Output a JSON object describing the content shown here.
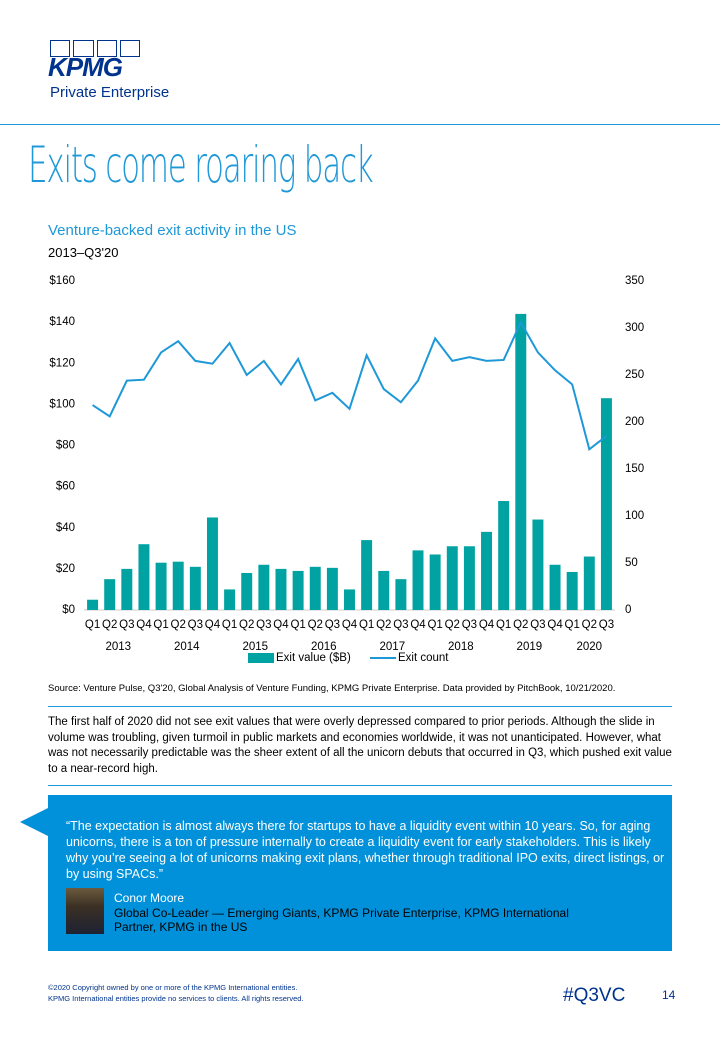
{
  "header": {
    "logo": "KPMG",
    "division": "Private Enterprise",
    "title": "Exits come roaring back"
  },
  "chart_data": {
    "type": "bar",
    "title": "Venture-backed exit activity in the US",
    "subtitle": "2013–Q3'20",
    "categories": [
      "Q1",
      "Q2",
      "Q3",
      "Q4",
      "Q1",
      "Q2",
      "Q3",
      "Q4",
      "Q1",
      "Q2",
      "Q3",
      "Q4",
      "Q1",
      "Q2",
      "Q3",
      "Q4",
      "Q1",
      "Q2",
      "Q3",
      "Q4",
      "Q1",
      "Q2",
      "Q3",
      "Q4",
      "Q1",
      "Q2",
      "Q3",
      "Q4",
      "Q1",
      "Q2",
      "Q3"
    ],
    "year_labels": [
      "2013",
      "2014",
      "2015",
      "2016",
      "2017",
      "2018",
      "2019",
      "2020"
    ],
    "series": [
      {
        "name": "Exit value ($B)",
        "color": "#00a3a1",
        "values": [
          5,
          15,
          20,
          32,
          23,
          23.5,
          21,
          45,
          10,
          18,
          22,
          20,
          19,
          21,
          20.5,
          10,
          34,
          19,
          15,
          29,
          27,
          31,
          31,
          38,
          53,
          144,
          44,
          22,
          18.5,
          26,
          103
        ]
      },
      {
        "name": "Exit count",
        "type": "line",
        "axis": "y2",
        "color": "#1e98d7",
        "values": [
          218,
          206,
          244,
          245,
          274,
          286,
          265,
          262,
          284,
          250,
          265,
          240,
          267,
          223,
          231,
          214,
          271,
          235,
          221,
          244,
          289,
          265,
          269,
          265,
          266,
          306,
          274,
          255,
          240,
          171,
          185
        ]
      }
    ],
    "ylim": [
      0,
      160
    ],
    "yticks": [
      {
        "value": 0,
        "label": "$0"
      },
      {
        "value": 20,
        "label": "$20"
      },
      {
        "value": 40,
        "label": "$40"
      },
      {
        "value": 60,
        "label": "$60"
      },
      {
        "value": 80,
        "label": "$80"
      },
      {
        "value": 100,
        "label": "$100"
      },
      {
        "value": 120,
        "label": "$120"
      },
      {
        "value": 140,
        "label": "$140"
      },
      {
        "value": 160,
        "label": "$160"
      }
    ],
    "y2lim": [
      0,
      350
    ],
    "y2ticks": [
      0,
      50,
      100,
      150,
      200,
      250,
      300,
      350
    ],
    "grid": false,
    "legend": "bottom"
  },
  "source": "Source: Venture Pulse, Q3'20, Global Analysis of Venture Funding, KPMG Private Enterprise. Data provided by PitchBook, 10/21/2020.",
  "body": "The first half of 2020 did not see exit values that were overly depressed compared to prior periods. Although the slide in volume was troubling, given turmoil in public markets and economies worldwide, it was not unanticipated. However, what was not necessarily predictable was the sheer extent of all the unicorn debuts that occurred in Q3, which pushed exit value to a near-record high.",
  "quote": {
    "text": "“The expectation is almost always there for startups to have a liquidity event within 10 years. So, for aging unicorns, there is a ton of pressure internally to create a liquidity event for early stakeholders. This is likely why you’re seeing a lot of unicorns making exit plans, whether through traditional IPO exits, direct listings, or by using SPACs.”",
    "name": "Conor Moore",
    "role": "Global Co-Leader — Emerging Giants, KPMG Private Enterprise, KPMG International",
    "role2": "Partner, KPMG in the US"
  },
  "footer": {
    "copyright": "©2020 Copyright owned by one or more of the KPMG International entities.",
    "copyright2": "KPMG International entities provide no services to clients. All rights reserved.",
    "tag": "#Q3VC",
    "page": "14"
  }
}
